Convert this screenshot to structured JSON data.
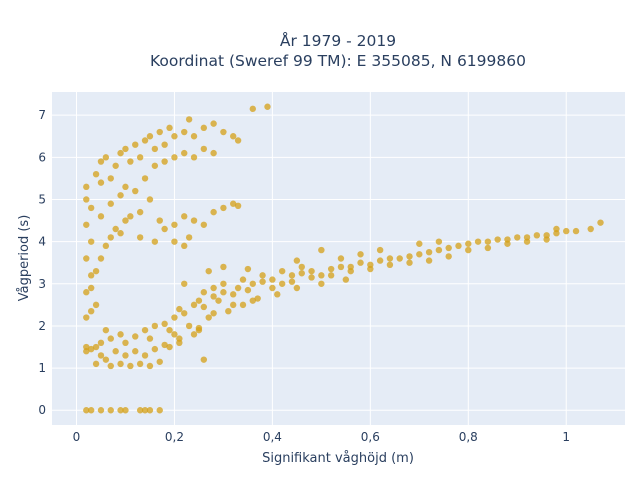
{
  "chart_data": {
    "type": "scatter",
    "title_line1": "År 1979 - 2019",
    "title_line2": "Koordinat (Sweref 99 TM): E 355085, N 6199860",
    "xlabel": "Signifikant våghöjd (m)",
    "ylabel": "Vågperiod (s)",
    "xlim": [
      -0.05,
      1.12
    ],
    "ylim": [
      -0.35,
      7.55
    ],
    "x_ticks": [
      0,
      0.2,
      0.4,
      0.6,
      0.8,
      1
    ],
    "x_tick_labels": [
      "0",
      "0,2",
      "0,4",
      "0,6",
      "0,8",
      "1"
    ],
    "y_ticks": [
      0,
      1,
      2,
      3,
      4,
      5,
      6,
      7
    ],
    "y_tick_labels": [
      "0",
      "1",
      "2",
      "3",
      "4",
      "5",
      "6",
      "7"
    ],
    "grid": true,
    "legend": "none",
    "marker_color": "#D4A017",
    "plot_bg": "#E5ECF6",
    "points": [
      [
        0.02,
        0.0
      ],
      [
        0.03,
        0.0
      ],
      [
        0.05,
        0.0
      ],
      [
        0.07,
        0.0
      ],
      [
        0.09,
        0.0
      ],
      [
        0.1,
        0.0
      ],
      [
        0.13,
        0.0
      ],
      [
        0.14,
        0.0
      ],
      [
        0.15,
        0.0
      ],
      [
        0.17,
        0.0
      ],
      [
        0.02,
        1.5
      ],
      [
        0.03,
        1.45
      ],
      [
        0.04,
        1.5
      ],
      [
        0.02,
        1.4
      ],
      [
        0.05,
        1.3
      ],
      [
        0.04,
        1.1
      ],
      [
        0.06,
        1.2
      ],
      [
        0.07,
        1.05
      ],
      [
        0.09,
        1.1
      ],
      [
        0.11,
        1.05
      ],
      [
        0.13,
        1.1
      ],
      [
        0.15,
        1.05
      ],
      [
        0.17,
        1.15
      ],
      [
        0.05,
        1.6
      ],
      [
        0.07,
        1.7
      ],
      [
        0.09,
        1.8
      ],
      [
        0.1,
        1.6
      ],
      [
        0.12,
        1.75
      ],
      [
        0.14,
        1.9
      ],
      [
        0.15,
        1.7
      ],
      [
        0.16,
        2.0
      ],
      [
        0.18,
        2.05
      ],
      [
        0.2,
        2.2
      ],
      [
        0.19,
        1.9
      ],
      [
        0.21,
        2.4
      ],
      [
        0.22,
        2.3
      ],
      [
        0.24,
        2.5
      ],
      [
        0.25,
        2.6
      ],
      [
        0.26,
        2.45
      ],
      [
        0.28,
        2.7
      ],
      [
        0.29,
        2.6
      ],
      [
        0.3,
        2.8
      ],
      [
        0.32,
        2.75
      ],
      [
        0.33,
        2.9
      ],
      [
        0.35,
        2.85
      ],
      [
        0.36,
        3.0
      ],
      [
        0.38,
        3.05
      ],
      [
        0.4,
        3.1
      ],
      [
        0.42,
        3.0
      ],
      [
        0.44,
        3.2
      ],
      [
        0.46,
        3.25
      ],
      [
        0.48,
        3.3
      ],
      [
        0.5,
        3.2
      ],
      [
        0.52,
        3.35
      ],
      [
        0.54,
        3.4
      ],
      [
        0.56,
        3.4
      ],
      [
        0.58,
        3.5
      ],
      [
        0.6,
        3.45
      ],
      [
        0.62,
        3.55
      ],
      [
        0.64,
        3.6
      ],
      [
        0.66,
        3.6
      ],
      [
        0.68,
        3.65
      ],
      [
        0.7,
        3.7
      ],
      [
        0.72,
        3.75
      ],
      [
        0.74,
        3.8
      ],
      [
        0.76,
        3.85
      ],
      [
        0.78,
        3.9
      ],
      [
        0.8,
        3.95
      ],
      [
        0.82,
        4.0
      ],
      [
        0.84,
        4.0
      ],
      [
        0.86,
        4.05
      ],
      [
        0.88,
        4.05
      ],
      [
        0.9,
        4.1
      ],
      [
        0.92,
        4.1
      ],
      [
        0.94,
        4.15
      ],
      [
        0.96,
        4.15
      ],
      [
        0.98,
        4.2
      ],
      [
        1.0,
        4.25
      ],
      [
        1.07,
        4.45
      ],
      [
        1.05,
        4.3
      ],
      [
        0.2,
        1.8
      ],
      [
        0.23,
        2.0
      ],
      [
        0.27,
        2.2
      ],
      [
        0.31,
        2.35
      ],
      [
        0.34,
        2.5
      ],
      [
        0.37,
        2.65
      ],
      [
        0.41,
        2.75
      ],
      [
        0.45,
        2.9
      ],
      [
        0.5,
        3.0
      ],
      [
        0.55,
        3.1
      ],
      [
        0.18,
        1.55
      ],
      [
        0.21,
        1.7
      ],
      [
        0.25,
        1.9
      ],
      [
        0.26,
        1.2
      ],
      [
        0.22,
        3.0
      ],
      [
        0.27,
        3.3
      ],
      [
        0.3,
        3.4
      ],
      [
        0.35,
        3.35
      ],
      [
        0.45,
        3.55
      ],
      [
        0.5,
        3.8
      ],
      [
        0.02,
        2.8
      ],
      [
        0.03,
        3.2
      ],
      [
        0.02,
        3.6
      ],
      [
        0.03,
        4.0
      ],
      [
        0.02,
        4.4
      ],
      [
        0.03,
        4.8
      ],
      [
        0.02,
        5.3
      ],
      [
        0.04,
        5.6
      ],
      [
        0.05,
        5.9
      ],
      [
        0.06,
        6.0
      ],
      [
        0.07,
        5.5
      ],
      [
        0.08,
        5.8
      ],
      [
        0.09,
        6.1
      ],
      [
        0.1,
        6.2
      ],
      [
        0.11,
        5.9
      ],
      [
        0.12,
        6.3
      ],
      [
        0.13,
        6.0
      ],
      [
        0.14,
        6.4
      ],
      [
        0.15,
        6.5
      ],
      [
        0.16,
        6.2
      ],
      [
        0.17,
        6.6
      ],
      [
        0.18,
        6.3
      ],
      [
        0.19,
        6.7
      ],
      [
        0.2,
        6.5
      ],
      [
        0.22,
        6.6
      ],
      [
        0.23,
        6.9
      ],
      [
        0.24,
        6.5
      ],
      [
        0.26,
        6.7
      ],
      [
        0.28,
        6.8
      ],
      [
        0.3,
        6.6
      ],
      [
        0.32,
        6.5
      ],
      [
        0.33,
        6.4
      ],
      [
        0.36,
        7.15
      ],
      [
        0.39,
        7.2
      ],
      [
        0.05,
        4.6
      ],
      [
        0.07,
        4.9
      ],
      [
        0.09,
        5.1
      ],
      [
        0.1,
        5.3
      ],
      [
        0.12,
        5.2
      ],
      [
        0.14,
        5.5
      ],
      [
        0.16,
        5.8
      ],
      [
        0.18,
        5.9
      ],
      [
        0.2,
        6.0
      ],
      [
        0.22,
        6.1
      ],
      [
        0.24,
        6.0
      ],
      [
        0.26,
        6.2
      ],
      [
        0.28,
        6.1
      ],
      [
        0.03,
        2.9
      ],
      [
        0.04,
        3.3
      ],
      [
        0.05,
        3.6
      ],
      [
        0.06,
        3.9
      ],
      [
        0.07,
        4.1
      ],
      [
        0.08,
        4.3
      ],
      [
        0.09,
        4.2
      ],
      [
        0.1,
        4.5
      ],
      [
        0.11,
        4.6
      ],
      [
        0.13,
        4.7
      ],
      [
        0.15,
        5.0
      ],
      [
        0.17,
        4.5
      ],
      [
        0.18,
        4.3
      ],
      [
        0.2,
        4.4
      ],
      [
        0.22,
        4.6
      ],
      [
        0.24,
        4.5
      ],
      [
        0.26,
        4.4
      ],
      [
        0.28,
        4.7
      ],
      [
        0.3,
        4.8
      ],
      [
        0.32,
        4.9
      ],
      [
        0.33,
        4.85
      ],
      [
        0.23,
        4.1
      ],
      [
        0.2,
        4.0
      ],
      [
        0.16,
        4.0
      ],
      [
        0.13,
        4.1
      ],
      [
        0.22,
        3.9
      ],
      [
        0.02,
        5.0
      ],
      [
        0.05,
        5.4
      ],
      [
        0.03,
        2.35
      ],
      [
        0.02,
        2.2
      ],
      [
        0.04,
        2.5
      ],
      [
        0.06,
        1.9
      ],
      [
        0.08,
        1.4
      ],
      [
        0.1,
        1.3
      ],
      [
        0.12,
        1.4
      ],
      [
        0.14,
        1.3
      ],
      [
        0.16,
        1.45
      ],
      [
        0.19,
        1.5
      ],
      [
        0.21,
        1.6
      ],
      [
        0.24,
        1.8
      ],
      [
        0.25,
        1.95
      ],
      [
        0.28,
        2.3
      ],
      [
        0.32,
        2.5
      ],
      [
        0.36,
        2.6
      ],
      [
        0.4,
        2.9
      ],
      [
        0.44,
        3.05
      ],
      [
        0.48,
        3.15
      ],
      [
        0.52,
        3.2
      ],
      [
        0.56,
        3.3
      ],
      [
        0.6,
        3.35
      ],
      [
        0.64,
        3.45
      ],
      [
        0.68,
        3.5
      ],
      [
        0.72,
        3.55
      ],
      [
        0.76,
        3.65
      ],
      [
        0.8,
        3.8
      ],
      [
        0.84,
        3.85
      ],
      [
        0.88,
        3.95
      ],
      [
        0.92,
        4.0
      ],
      [
        0.96,
        4.05
      ],
      [
        0.98,
        4.3
      ],
      [
        1.02,
        4.25
      ],
      [
        0.74,
        4.0
      ],
      [
        0.7,
        3.95
      ],
      [
        0.62,
        3.8
      ],
      [
        0.58,
        3.7
      ],
      [
        0.54,
        3.6
      ],
      [
        0.46,
        3.4
      ],
      [
        0.42,
        3.3
      ],
      [
        0.38,
        3.2
      ],
      [
        0.34,
        3.1
      ],
      [
        0.3,
        3.0
      ],
      [
        0.28,
        2.9
      ],
      [
        0.26,
        2.8
      ]
    ]
  }
}
